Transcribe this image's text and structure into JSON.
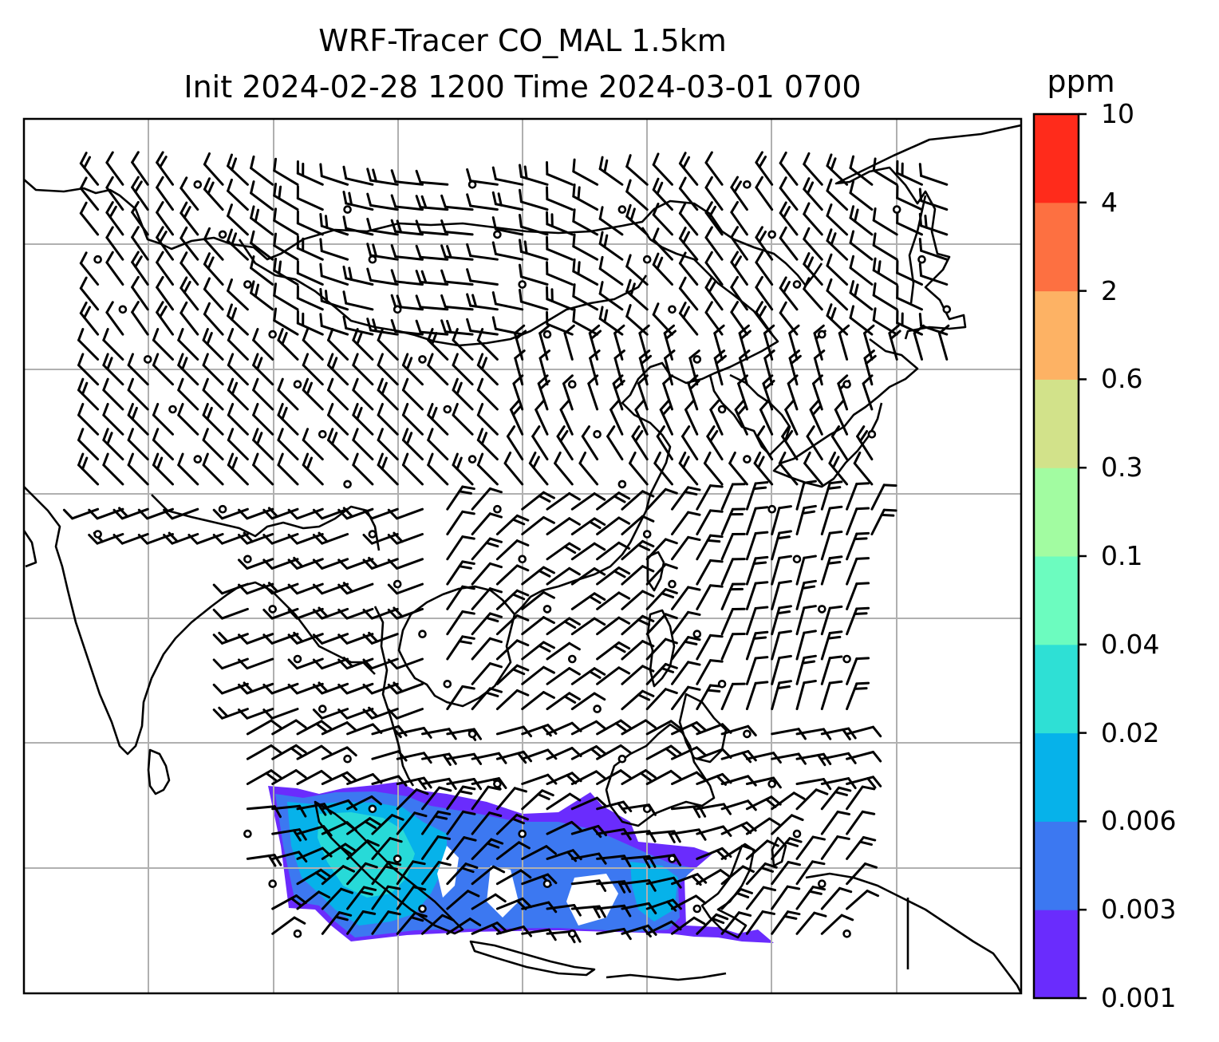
{
  "title": {
    "line1": "WRF-Tracer CO_MAL 1.5km",
    "line2": "Init 2024-02-28 1200 Time 2024-03-01 0700"
  },
  "variable": "CO_MAL",
  "colorbar": {
    "unit": "ppm",
    "levels": [
      "0.001",
      "0.003",
      "0.006",
      "0.02",
      "0.04",
      "0.1",
      "0.3",
      "0.6",
      "2",
      "4",
      "10"
    ],
    "colors": [
      "#6a2cfd",
      "#3c78f1",
      "#06b2ea",
      "#2ee0d5",
      "#6cfcbf",
      "#a2fca1",
      "#d2e28a",
      "#fdb264",
      "#fd7041",
      "#ff2b1b"
    ]
  },
  "map": {
    "field_color_low": "#6a2cfd",
    "field_color_mid": "#3c78f1",
    "field_color_high": "#2ee0d5",
    "coastline_color": "#000000",
    "gridline_color": "#b0b0b0",
    "wind_barb_color": "#000000"
  }
}
